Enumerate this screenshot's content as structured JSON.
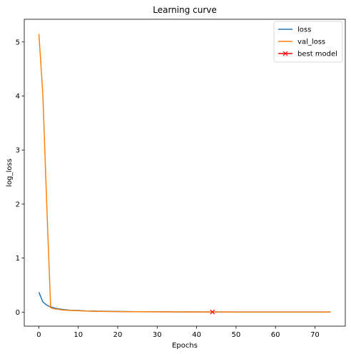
{
  "chart_data": {
    "type": "line",
    "title": "Learning curve",
    "xlabel": "Epochs",
    "ylabel": "log_loss",
    "xlim": [
      -3.7,
      77.7
    ],
    "ylim": [
      -0.26,
      5.42
    ],
    "xticks": [
      0,
      10,
      20,
      30,
      40,
      50,
      60,
      70
    ],
    "yticks": [
      0,
      1,
      2,
      3,
      4,
      5
    ],
    "grid": false,
    "legend_position": "top-right",
    "series": [
      {
        "name": "loss",
        "color": "#1f77b4",
        "x": [
          0,
          1,
          2,
          3,
          4,
          5,
          6,
          8,
          10,
          12,
          15,
          20,
          25,
          30,
          40,
          50,
          60,
          74
        ],
        "y": [
          0.37,
          0.19,
          0.13,
          0.095,
          0.075,
          0.06,
          0.05,
          0.035,
          0.03,
          0.022,
          0.018,
          0.012,
          0.008,
          0.006,
          0.004,
          0.003,
          0.003,
          0.003
        ]
      },
      {
        "name": "val_loss",
        "color": "#ff7f0e",
        "x": [
          0,
          1,
          2,
          3,
          4,
          5,
          6,
          8,
          10,
          12,
          15,
          20,
          25,
          30,
          40,
          50,
          60,
          74
        ],
        "y": [
          5.15,
          4.05,
          2.0,
          0.08,
          0.06,
          0.05,
          0.04,
          0.03,
          0.025,
          0.02,
          0.015,
          0.01,
          0.007,
          0.005,
          0.003,
          0.002,
          0.002,
          0.002
        ]
      },
      {
        "name": "best model",
        "color": "#ff0000",
        "marker": "x",
        "x": [
          44
        ],
        "y": [
          0.002
        ]
      }
    ]
  }
}
